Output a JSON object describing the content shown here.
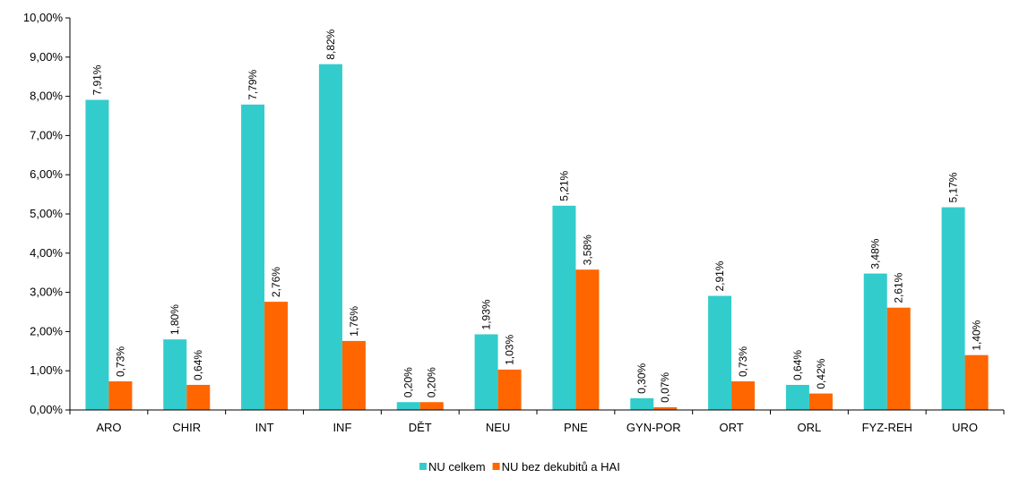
{
  "chart_data": {
    "type": "bar",
    "categories": [
      "ARO",
      "CHIR",
      "INT",
      "INF",
      "DĚT",
      "NEU",
      "PNE",
      "GYN-POR",
      "ORT",
      "ORL",
      "FYZ-REH",
      "URO"
    ],
    "series": [
      {
        "name": "NU celkem",
        "color": "#33CCCC",
        "values": [
          7.91,
          1.8,
          7.79,
          8.82,
          0.2,
          1.93,
          5.21,
          0.3,
          2.91,
          0.64,
          3.48,
          5.17
        ],
        "value_labels": [
          "7,91%",
          "1,80%",
          "7,79%",
          "8,82%",
          "0,20%",
          "1,93%",
          "5,21%",
          "0,30%",
          "2,91%",
          "0,64%",
          "3,48%",
          "5,17%"
        ]
      },
      {
        "name": "NU bez dekubitů a HAI",
        "color": "#FF6600",
        "values": [
          0.73,
          0.64,
          2.76,
          1.76,
          0.2,
          1.03,
          3.58,
          0.07,
          0.73,
          0.42,
          2.61,
          1.4
        ],
        "value_labels": [
          "0,73%",
          "0,64%",
          "2,76%",
          "1,76%",
          "0,20%",
          "1,03%",
          "3,58%",
          "0,07%",
          "0,73%",
          "0,42%",
          "2,61%",
          "1,40%"
        ]
      }
    ],
    "ylim": [
      0,
      10
    ],
    "yticks": [
      {
        "value": 0,
        "label": "0,00%"
      },
      {
        "value": 1,
        "label": "1,00%"
      },
      {
        "value": 2,
        "label": "2,00%"
      },
      {
        "value": 3,
        "label": "3,00%"
      },
      {
        "value": 4,
        "label": "4,00%"
      },
      {
        "value": 5,
        "label": "5,00%"
      },
      {
        "value": 6,
        "label": "6,00%"
      },
      {
        "value": 7,
        "label": "7,00%"
      },
      {
        "value": 8,
        "label": "8,00%"
      },
      {
        "value": 9,
        "label": "9,00%"
      },
      {
        "value": 10,
        "label": "10,00%"
      }
    ],
    "grid": false,
    "legend": "bottom"
  }
}
